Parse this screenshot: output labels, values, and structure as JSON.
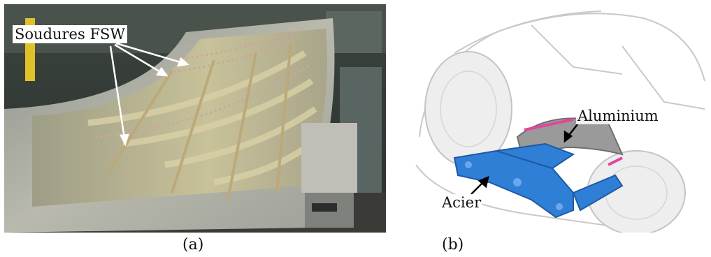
{
  "figure": {
    "panels": [
      {
        "caption": "(a)",
        "annotation": "Soudures FSW",
        "image": "photo-fsw-welded-aluminium-panels"
      },
      {
        "caption": "(b)",
        "annotations": [
          "Aluminium",
          "Acier"
        ],
        "image": "car-front-subframe-steel-aluminium"
      }
    ]
  },
  "colors": {
    "steel": "#2f7fd6",
    "aluminium": "#9a9a9a",
    "weld": "#e0479a"
  }
}
